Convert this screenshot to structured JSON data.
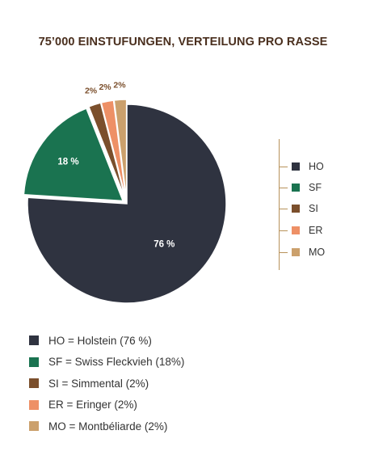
{
  "chart_data": {
    "type": "pie",
    "title": "75’000 EINSTUFUNGEN, VERTEILUNG PRO RASSE",
    "slices": [
      {
        "key": "ho",
        "name": "HO",
        "value": 76,
        "label": "76 %",
        "color": "#2f3340",
        "exploded": false
      },
      {
        "key": "sf",
        "name": "SF",
        "value": 18,
        "label": "18 %",
        "color": "#1a7350",
        "exploded": true
      },
      {
        "key": "si",
        "name": "SI",
        "value": 2,
        "label": "2%",
        "color": "#7b4f2c",
        "exploded": true
      },
      {
        "key": "er",
        "name": "ER",
        "value": 2,
        "label": "2%",
        "color": "#ee9066",
        "exploded": true
      },
      {
        "key": "mo",
        "name": "MO",
        "value": 2,
        "label": "2%",
        "color": "#cba06c",
        "exploded": true
      }
    ],
    "legend_placement": "right"
  },
  "legend_bottom": [
    {
      "text": "HO = Holstein (76 %)",
      "color": "#2f3340"
    },
    {
      "text": "SF = Swiss Fleckvieh (18%)",
      "color": "#1a7350"
    },
    {
      "text": "SI = Simmental (2%)",
      "color": "#7b4f2c"
    },
    {
      "text": "ER = Eringer (2%)",
      "color": "#ee9066"
    },
    {
      "text": "MO = Montbéliarde (2%)",
      "color": "#cba06c"
    }
  ]
}
